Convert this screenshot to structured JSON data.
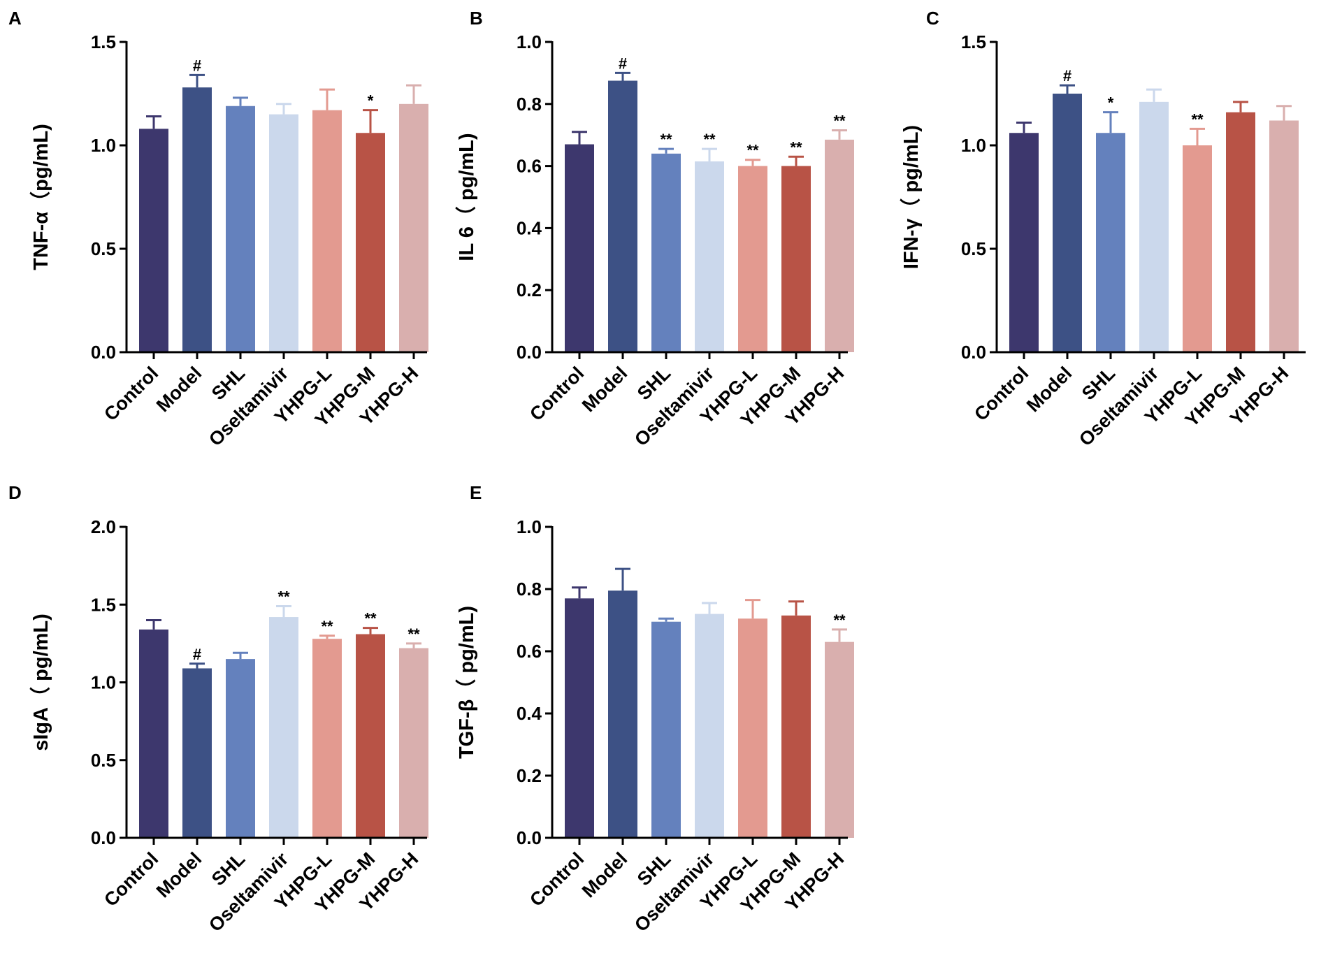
{
  "chart_data": [
    {
      "type": "bar",
      "panel": "A",
      "ylabel": "TNF-α（pg/mL)",
      "ylim": [
        0,
        1.5
      ],
      "yticks": [
        "0.0",
        "0.5",
        "1.0",
        "1.5"
      ],
      "categories": [
        "Control",
        "Model",
        "SHL",
        "Oseltamivir",
        "YHPG-L",
        "YHPG-M",
        "YHPG-H"
      ],
      "values": [
        1.08,
        1.28,
        1.19,
        1.15,
        1.17,
        1.06,
        1.2
      ],
      "errors": [
        0.06,
        0.06,
        0.04,
        0.05,
        0.1,
        0.11,
        0.09
      ],
      "significance": [
        "",
        "#",
        "",
        "",
        "",
        "*",
        ""
      ]
    },
    {
      "type": "bar",
      "panel": "B",
      "ylabel": "IL 6（ pg/mL)",
      "ylim": [
        0,
        1.0
      ],
      "yticks": [
        "0.0",
        "0.2",
        "0.4",
        "0.6",
        "0.8",
        "1.0"
      ],
      "categories": [
        "Control",
        "Model",
        "SHL",
        "Oseltamivir",
        "YHPG-L",
        "YHPG-M",
        "YHPG-H"
      ],
      "values": [
        0.67,
        0.875,
        0.64,
        0.615,
        0.6,
        0.6,
        0.685
      ],
      "errors": [
        0.04,
        0.025,
        0.015,
        0.04,
        0.02,
        0.03,
        0.03
      ],
      "significance": [
        "",
        "#",
        "**",
        "**",
        "**",
        "**",
        "**"
      ]
    },
    {
      "type": "bar",
      "panel": "C",
      "ylabel": "IFN-γ（ pg/mL)",
      "ylim": [
        0,
        1.5
      ],
      "yticks": [
        "0.0",
        "0.5",
        "1.0",
        "1.5"
      ],
      "categories": [
        "Control",
        "Model",
        "SHL",
        "Oseltamivir",
        "YHPG-L",
        "YHPG-M",
        "YHPG-H"
      ],
      "values": [
        1.06,
        1.25,
        1.06,
        1.21,
        1.0,
        1.16,
        1.12
      ],
      "errors": [
        0.05,
        0.04,
        0.1,
        0.06,
        0.08,
        0.05,
        0.07
      ],
      "significance": [
        "",
        "#",
        "*",
        "",
        "**",
        "",
        ""
      ]
    },
    {
      "type": "bar",
      "panel": "D",
      "ylabel": "sIgA（ pg/mL)",
      "ylim": [
        0,
        2.0
      ],
      "yticks": [
        "0.0",
        "0.5",
        "1.0",
        "1.5",
        "2.0"
      ],
      "categories": [
        "Control",
        "Model",
        "SHL",
        "Oseltamivir",
        "YHPG-L",
        "YHPG-M",
        "YHPG-H"
      ],
      "values": [
        1.34,
        1.09,
        1.15,
        1.42,
        1.28,
        1.31,
        1.22
      ],
      "errors": [
        0.06,
        0.03,
        0.04,
        0.07,
        0.02,
        0.04,
        0.03
      ],
      "significance": [
        "",
        "#",
        "",
        "**",
        "**",
        "**",
        "**"
      ]
    },
    {
      "type": "bar",
      "panel": "E",
      "ylabel": "TGF-β（ pg/mL)",
      "ylim": [
        0,
        1.0
      ],
      "yticks": [
        "0.0",
        "0.2",
        "0.4",
        "0.6",
        "0.8",
        "1.0"
      ],
      "categories": [
        "Control",
        "Model",
        "SHL",
        "Oseltamivir",
        "YHPG-L",
        "YHPG-M",
        "YHPG-H"
      ],
      "values": [
        0.77,
        0.795,
        0.695,
        0.72,
        0.705,
        0.715,
        0.63
      ],
      "errors": [
        0.035,
        0.07,
        0.01,
        0.035,
        0.06,
        0.045,
        0.04
      ],
      "significance": [
        "",
        "",
        "",
        "",
        "",
        "",
        "**"
      ]
    }
  ],
  "colors": {
    "bars": [
      "#3d376d",
      "#3d5185",
      "#6481bd",
      "#cbd8ec",
      "#e39a90",
      "#b85346",
      "#d9afae"
    ],
    "errors": [
      "#3d376d",
      "#3d5185",
      "#6481bd",
      "#cbd8ec",
      "#e39a90",
      "#b85346",
      "#d9afae"
    ],
    "axis": "#000000"
  }
}
